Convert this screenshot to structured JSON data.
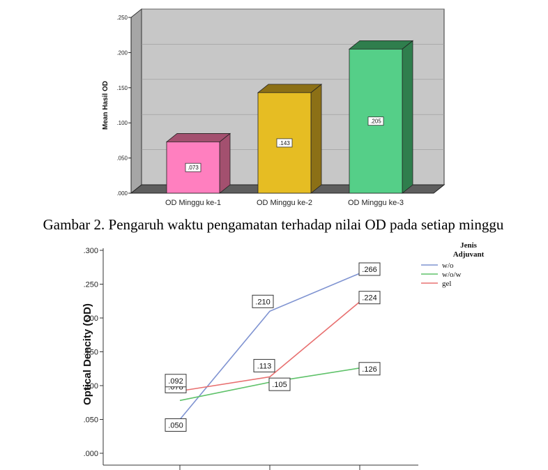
{
  "caption": "Gambar 2. Pengaruh waktu pengamatan terhadap nilai OD pada setiap minggu",
  "chart_data": [
    {
      "type": "bar",
      "categories": [
        "OD Minggu ke-1",
        "OD Minggu ke-2",
        "OD Minggu ke-3"
      ],
      "values": [
        0.073,
        0.143,
        0.205
      ],
      "value_labels": [
        ".073",
        ".143",
        ".205"
      ],
      "ylabel": "Mean Hasil OD",
      "ylim": [
        0,
        0.25
      ],
      "yticks": [
        ".000",
        ".050",
        ".100",
        ".150",
        ".200",
        ".250"
      ],
      "colors": [
        "#ff7fbf",
        "#e6bd23",
        "#55cf88"
      ],
      "colors_dark": [
        "#a3506f",
        "#8c7016",
        "#2f7e4d"
      ],
      "background": "#c7c7c7",
      "grid": true
    },
    {
      "type": "line",
      "x": [
        1,
        2,
        3
      ],
      "series": [
        {
          "name": "w/o",
          "color": "#7f93d1",
          "values": [
            0.05,
            0.21,
            0.266
          ],
          "labels": [
            ".050",
            ".210",
            ".266"
          ]
        },
        {
          "name": "w/o/w",
          "color": "#5fc26a",
          "values": [
            0.078,
            0.105,
            0.126
          ],
          "labels": [
            ".078",
            ".105",
            ".126"
          ]
        },
        {
          "name": "gel",
          "color": "#e87070",
          "values": [
            0.092,
            0.113,
            0.224
          ],
          "labels": [
            ".092",
            ".113",
            ".224"
          ]
        }
      ],
      "ylabel": "Optical Dencity (OD)",
      "ylim": [
        0,
        0.3
      ],
      "yticks": [
        ".000",
        ".050",
        ".100",
        ".150",
        ".200",
        ".250",
        ".300"
      ],
      "legend_title": [
        "Jenis",
        "Adjuvant"
      ],
      "legend_position": "top-right",
      "grid": false
    }
  ]
}
